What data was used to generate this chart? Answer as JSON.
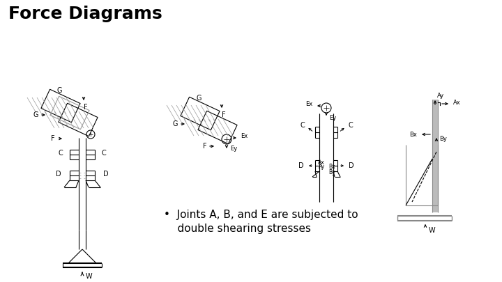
{
  "title": "Force Diagrams",
  "title_fontsize": 18,
  "title_fontweight": "bold",
  "bullet_text_line1": "•  Joints A, B, and E are subjected to",
  "bullet_text_line2": "    double shearing stresses",
  "text_fontsize": 11,
  "bg_color": "#ffffff",
  "line_color": "#000000",
  "gray_color": "#999999",
  "label_fontsize": 7
}
